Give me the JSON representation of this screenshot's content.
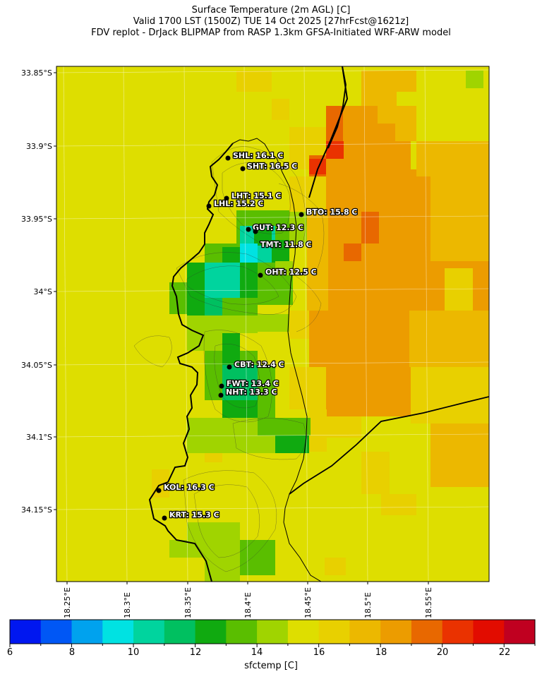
{
  "title": {
    "line1": "Surface Temperature (2m AGL) [C]",
    "line2": "Valid 1700 LST (1500Z) TUE 14 Oct 2025 [27hrFcst@1621z]",
    "line3": "FDV replot - DrJack BLIPMAP from RASP 1.3km GFSA-Initiated WRF-ARW model"
  },
  "axes": {
    "lat_ticks": [
      "33.85°S",
      "33.9°S",
      "33.95°S",
      "34°S",
      "34.05°S",
      "34.1°S",
      "34.15°S"
    ],
    "lon_ticks": [
      "18.25°E",
      "18.3°E",
      "18.35°E",
      "18.4°E",
      "18.45°E",
      "18.5°E",
      "18.55°E"
    ]
  },
  "stations": [
    {
      "code": "SHL",
      "label": "SHL: 16.1 C"
    },
    {
      "code": "SHT",
      "label": "SHT: 16.5 C"
    },
    {
      "code": "LHT",
      "label": "LHT: 15.1 C"
    },
    {
      "code": "LHL",
      "label": "LHL: 15.2 C"
    },
    {
      "code": "BTO",
      "label": "BTO: 15.8 C"
    },
    {
      "code": "GUT",
      "label": "GUT: 12.3 C"
    },
    {
      "code": "TMT",
      "label": "TMT: 11.8 C"
    },
    {
      "code": "OHT",
      "label": "OHT: 12.5 C"
    },
    {
      "code": "CBT",
      "label": "CBT: 12.4 C"
    },
    {
      "code": "FWT",
      "label": "FWT: 13.4 C"
    },
    {
      "code": "NHT",
      "label": "NHT: 13.3 C"
    },
    {
      "code": "KOL",
      "label": "KOL: 16.3 C"
    },
    {
      "code": "KRT",
      "label": "KRT: 15.3 C"
    }
  ],
  "colorbar": {
    "title": "sfctemp [C]",
    "tick_labels": [
      "6",
      "8",
      "10",
      "12",
      "14",
      "16",
      "18",
      "20",
      "22"
    ],
    "colors": [
      "#0017f0",
      "#0057f5",
      "#00a2ee",
      "#00e2e2",
      "#00d49e",
      "#00c060",
      "#10aa10",
      "#5abe00",
      "#a0d400",
      "#dede00",
      "#e8d000",
      "#ecb800",
      "#ec9c00",
      "#e86800",
      "#ea3200",
      "#e20c00",
      "#c00020"
    ],
    "range": [
      6,
      23
    ]
  },
  "background_color": "#dede00"
}
